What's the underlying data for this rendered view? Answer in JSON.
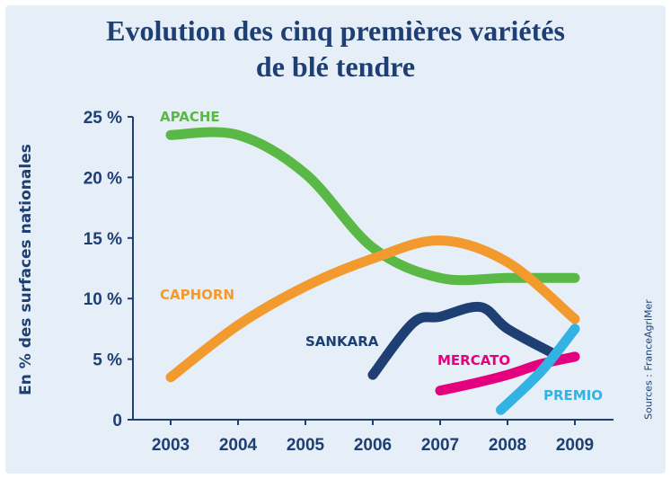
{
  "chart_data": {
    "type": "line",
    "title_lines": [
      "Evolution des cinq premières variétés",
      "de blé tendre"
    ],
    "ylabel": "En % des surfaces nationales",
    "source": "Sources : FranceAgriMer",
    "categories": [
      "2003",
      "2004",
      "2005",
      "2006",
      "2007",
      "2008",
      "2009"
    ],
    "y_ticks": [
      "0",
      "5 %",
      "10 %",
      "15 %",
      "20 %",
      "25 %"
    ],
    "ylim": [
      0,
      25
    ],
    "grid": false,
    "series": [
      {
        "name": "APACHE",
        "color": "#5ab946",
        "points": [
          [
            2003,
            23.5
          ],
          [
            2004,
            23.5
          ],
          [
            2005,
            20.3
          ],
          [
            2006,
            14.2
          ],
          [
            2007,
            11.7
          ],
          [
            2008,
            11.7
          ],
          [
            2009,
            11.7
          ]
        ]
      },
      {
        "name": "CAPHORN",
        "color": "#f39a2e",
        "points": [
          [
            2003,
            3.5
          ],
          [
            2004,
            7.8
          ],
          [
            2005,
            11.0
          ],
          [
            2006,
            13.3
          ],
          [
            2007,
            14.8
          ],
          [
            2008,
            13.0
          ],
          [
            2009,
            8.3
          ]
        ]
      },
      {
        "name": "SANKARA",
        "color": "#1d3f73",
        "points": [
          [
            2006,
            3.7
          ],
          [
            2006.6,
            8.0
          ],
          [
            2007,
            8.5
          ],
          [
            2007.6,
            9.3
          ],
          [
            2008,
            7.5
          ],
          [
            2008.7,
            5.4
          ]
        ]
      },
      {
        "name": "MERCATO",
        "color": "#e5007e",
        "points": [
          [
            2007,
            2.4
          ],
          [
            2007.5,
            3.0
          ],
          [
            2008,
            3.7
          ],
          [
            2008.5,
            4.6
          ],
          [
            2009,
            5.2
          ]
        ]
      },
      {
        "name": "PREMIO",
        "color": "#33b3e3",
        "points": [
          [
            2007.9,
            0.8
          ],
          [
            2008.5,
            4.0
          ],
          [
            2009,
            7.5
          ]
        ]
      }
    ]
  }
}
